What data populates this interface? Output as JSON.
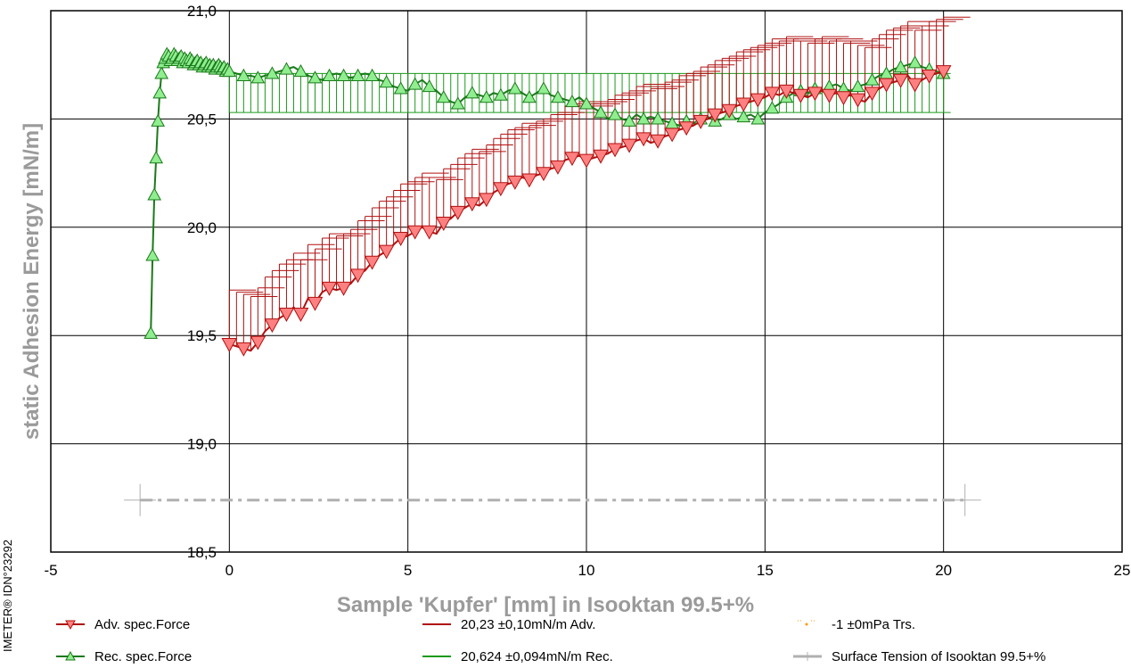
{
  "chart_data": {
    "type": "scatter",
    "xlabel": "Sample 'Kupfer' [mm] in Isooktan 99.5+%",
    "ylabel": "static Adhesion Energy [mN/m]",
    "xlim": [
      -5,
      25
    ],
    "ylim": [
      18.5,
      21.0
    ],
    "x_ticks": [
      -5,
      0,
      5,
      10,
      15,
      20,
      25
    ],
    "x_tick_labels": [
      "-5",
      "0",
      "5",
      "10",
      "15",
      "20",
      "25"
    ],
    "y_ticks": [
      18.5,
      19.0,
      19.5,
      20.0,
      20.5,
      21.0
    ],
    "y_tick_labels": [
      "18,5",
      "19,0",
      "19,5",
      "20,0",
      "20,5",
      "21,0"
    ],
    "grid": true,
    "side_label": "IMETER® IDN°23292",
    "legend": [
      {
        "label": "Adv. spec.Force",
        "color": "#b01010",
        "marker": "triangle-down"
      },
      {
        "label": "20,23 ±0,10mN/m Adv.",
        "color": "#b01010",
        "marker": "none"
      },
      {
        "label": "-1 ±0mPa Trs.",
        "color": "#ff9900",
        "marker": "dot"
      },
      {
        "label": "Rec. spec.Force",
        "color": "#1a7a1a",
        "marker": "triangle-up"
      },
      {
        "label": "20,624 ±0,094mN/m Rec.",
        "color": "#1a9a1a",
        "marker": "none"
      },
      {
        "label": "Surface Tension of Isooktan 99.5+%",
        "color": "#b0b0b0",
        "marker": "cross"
      }
    ],
    "series": [
      {
        "name": "Adv. spec.Force",
        "color": "#b01010",
        "fill": "#ff8080",
        "marker": "triangle-down",
        "error_bar": 0.25,
        "x_start": 0.0,
        "x_step": 0.2,
        "y": [
          19.46,
          19.45,
          19.44,
          19.43,
          19.47,
          19.52,
          19.55,
          19.58,
          19.6,
          19.63,
          19.6,
          19.67,
          19.65,
          19.7,
          19.72,
          19.71,
          19.72,
          19.74,
          19.78,
          19.8,
          19.84,
          19.87,
          19.89,
          19.92,
          19.95,
          19.96,
          19.98,
          20.0,
          19.98,
          19.97,
          20.02,
          20.04,
          20.07,
          20.09,
          20.11,
          20.1,
          20.13,
          20.16,
          20.18,
          20.2,
          20.21,
          20.23,
          20.22,
          20.24,
          20.25,
          20.27,
          20.28,
          20.31,
          20.32,
          20.33,
          20.31,
          20.32,
          20.33,
          20.34,
          20.36,
          20.37,
          20.38,
          20.4,
          20.41,
          20.39,
          20.4,
          20.42,
          20.43,
          20.45,
          20.46,
          20.47,
          20.49,
          20.5,
          20.52,
          20.53,
          20.54,
          20.56,
          20.57,
          20.58,
          20.59,
          20.6,
          20.62,
          20.61,
          20.63,
          20.62,
          20.61,
          20.6,
          20.62,
          20.63,
          20.61,
          20.62,
          20.6,
          20.61,
          20.59,
          20.58,
          20.62,
          20.64,
          20.66,
          20.67,
          20.68,
          20.7,
          20.66,
          20.68,
          20.7,
          20.71,
          20.72
        ]
      },
      {
        "name": "Rec. spec.Force",
        "color": "#1a7a1a",
        "fill": "#90ee90",
        "marker": "triangle-up",
        "x": [
          -2.2,
          -2.15,
          -2.1,
          -2.05,
          -2.0,
          -1.95,
          -1.9,
          -1.85,
          -1.8,
          -1.75,
          -1.7,
          -1.65,
          -1.6,
          -1.55,
          -1.5,
          -1.45,
          -1.4,
          -1.35,
          -1.3,
          -1.25,
          -1.2,
          -1.15,
          -1.1,
          -1.05,
          -1.0,
          -0.95,
          -0.9,
          -0.85,
          -0.8,
          -0.75,
          -0.7,
          -0.65,
          -0.6,
          -0.55,
          -0.5,
          -0.45,
          -0.4,
          -0.35,
          -0.3,
          -0.25,
          -0.2,
          -0.15,
          -0.1,
          -0.05
        ],
        "y": [
          19.51,
          19.87,
          20.15,
          20.32,
          20.49,
          20.62,
          20.71,
          20.76,
          20.78,
          20.8,
          20.79,
          20.77,
          20.78,
          20.8,
          20.79,
          20.77,
          20.78,
          20.79,
          20.76,
          20.78,
          20.77,
          20.76,
          20.78,
          20.77,
          20.75,
          20.76,
          20.77,
          20.75,
          20.76,
          20.74,
          20.75,
          20.76,
          20.74,
          20.75,
          20.74,
          20.75,
          20.73,
          20.74,
          20.75,
          20.74,
          20.73,
          20.74,
          20.72,
          20.73
        ],
        "continuation": {
          "error_bar_low": 20.53,
          "error_bar_high": 20.71,
          "x_start": 0.0,
          "x_step": 0.2,
          "y": [
            20.72,
            20.71,
            20.7,
            20.7,
            20.69,
            20.7,
            20.71,
            20.72,
            20.73,
            20.74,
            20.72,
            20.7,
            20.69,
            20.68,
            20.7,
            20.71,
            20.7,
            20.69,
            20.7,
            20.71,
            20.7,
            20.68,
            20.67,
            20.65,
            20.64,
            20.63,
            20.66,
            20.68,
            20.65,
            20.63,
            20.6,
            20.58,
            20.57,
            20.6,
            20.62,
            20.61,
            20.6,
            20.62,
            20.61,
            20.63,
            20.64,
            20.62,
            20.6,
            20.62,
            20.64,
            20.61,
            20.6,
            20.59,
            20.58,
            20.6,
            20.57,
            20.55,
            20.53,
            20.5,
            20.52,
            20.5,
            20.49,
            20.52,
            20.5,
            20.51,
            20.5,
            20.49,
            20.48,
            20.47,
            20.49,
            20.48,
            20.5,
            20.51,
            20.49,
            20.5,
            20.52,
            20.5,
            20.51,
            20.52,
            20.5,
            20.53,
            20.55,
            20.57,
            20.6,
            20.62,
            20.63,
            20.62,
            20.64,
            20.63,
            20.65,
            20.66,
            20.64,
            20.63,
            20.65,
            20.66,
            20.68,
            20.7,
            20.71,
            20.73,
            20.74,
            20.75,
            20.76,
            20.74,
            20.73,
            20.72,
            20.71
          ]
        }
      },
      {
        "name": "Surface Tension of Isooktan 99.5+%",
        "color": "#b0b0b0",
        "marker": "cross",
        "y_value": 18.74,
        "x_range": [
          -2.5,
          20.6
        ]
      }
    ]
  }
}
